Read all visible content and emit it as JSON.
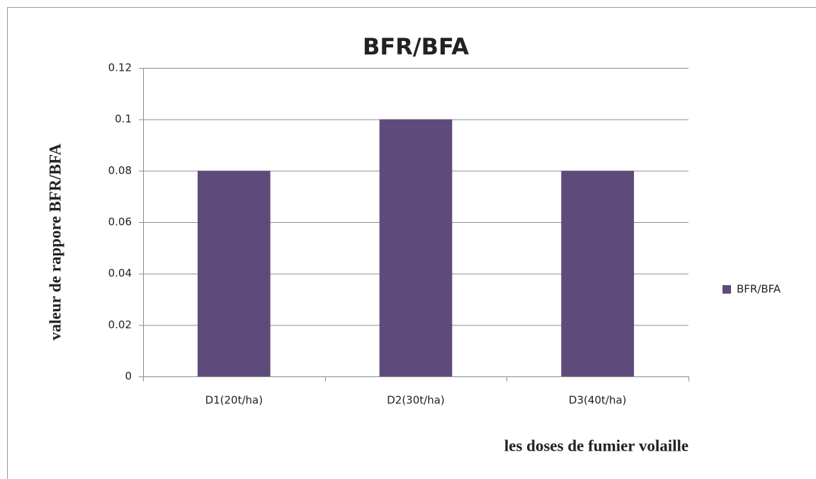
{
  "chart_data": {
    "type": "bar",
    "title": "BFR/BFA",
    "x_label": "les doses de fumier volaille",
    "y_label": "valeur de rappore BFR/BFA",
    "categories": [
      "D1(20t/ha)",
      "D2(30t/ha)",
      "D3(40t/ha)"
    ],
    "series": [
      {
        "name": "BFR/BFA",
        "color": "#5f4b7b",
        "values": [
          0.08,
          0.1,
          0.08
        ]
      }
    ],
    "ylim": [
      0,
      0.12
    ],
    "yticks": [
      0,
      0.02,
      0.04,
      0.06,
      0.08,
      0.1,
      0.12
    ],
    "grid": true,
    "legend": "right"
  }
}
